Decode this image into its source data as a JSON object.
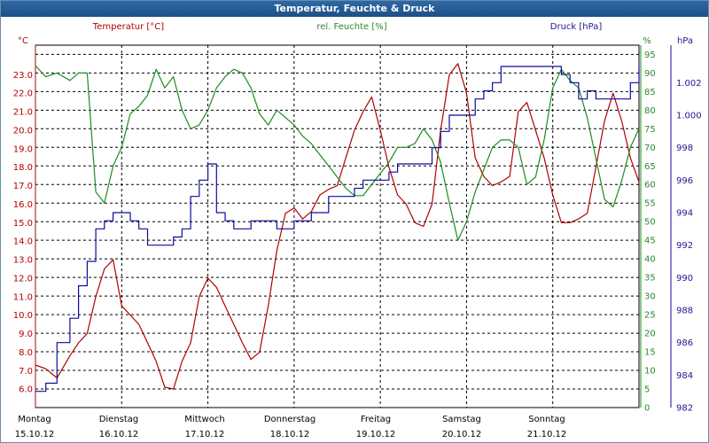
{
  "window": {
    "title": "Temperatur, Feuchte & Druck"
  },
  "colors": {
    "temp": "#b00000",
    "hum": "#1e8c1e",
    "press": "#0c0ca0"
  },
  "chart_data": {
    "type": "line",
    "title": "Temperatur, Feuchte & Druck",
    "axes": {
      "temp": {
        "label": "Temperatur [°C]",
        "unit": "°C",
        "min": 5.0,
        "max": 24.5,
        "ticks": [
          "6.0",
          "7.0",
          "8.0",
          "9.0",
          "10.0",
          "11.0",
          "12.0",
          "13.0",
          "14.0",
          "15.0",
          "16.0",
          "17.0",
          "18.0",
          "19.0",
          "20.0",
          "21.0",
          "22.0",
          "23.0"
        ]
      },
      "hum": {
        "label": "rel. Feuchte [%]",
        "unit": "%",
        "min": 0,
        "max": 97,
        "ticks": [
          "0",
          "5",
          "10",
          "15",
          "20",
          "25",
          "30",
          "35",
          "40",
          "45",
          "50",
          "55",
          "60",
          "65",
          "70",
          "75",
          "80",
          "85",
          "90",
          "95"
        ]
      },
      "press": {
        "label": "Druck [hPa]",
        "unit": "hPa",
        "min": 982.0,
        "max": 1004.2,
        "ticks": [
          "982",
          "984",
          "986",
          "988",
          "990",
          "992",
          "994",
          "996",
          "998",
          "1.000",
          "1.002"
        ]
      }
    },
    "days": [
      {
        "name": "Montag",
        "date": "15.10.12"
      },
      {
        "name": "Dienstag",
        "date": "16.10.12"
      },
      {
        "name": "Mittwoch",
        "date": "17.10.12"
      },
      {
        "name": "Donnerstag",
        "date": "18.10.12"
      },
      {
        "name": "Freitag",
        "date": "19.10.12"
      },
      {
        "name": "Samstag",
        "date": "20.10.12"
      },
      {
        "name": "Sonntag",
        "date": "21.10.12"
      }
    ],
    "x_range": [
      0,
      7.0
    ],
    "series": [
      {
        "name": "Temperatur",
        "axis": "temp",
        "x": [
          0,
          0.12,
          0.25,
          0.4,
          0.5,
          0.6,
          0.7,
          0.8,
          0.9,
          1.0,
          1.1,
          1.2,
          1.3,
          1.4,
          1.5,
          1.6,
          1.7,
          1.8,
          1.9,
          2.0,
          2.1,
          2.2,
          2.3,
          2.4,
          2.5,
          2.6,
          2.7,
          2.8,
          2.9,
          3.0,
          3.1,
          3.2,
          3.3,
          3.4,
          3.5,
          3.6,
          3.7,
          3.8,
          3.9,
          4.0,
          4.1,
          4.2,
          4.3,
          4.4,
          4.5,
          4.6,
          4.7,
          4.8,
          4.9,
          5.0,
          5.1,
          5.2,
          5.3,
          5.4,
          5.5,
          5.6,
          5.7,
          5.8,
          5.9,
          6.0,
          6.1,
          6.2,
          6.3,
          6.4,
          6.5,
          6.6,
          6.7,
          6.8,
          6.9,
          7.0
        ],
        "values": [
          7.3,
          7.1,
          6.6,
          7.8,
          8.5,
          9.0,
          11.0,
          12.5,
          13.0,
          10.5,
          10.0,
          9.5,
          8.5,
          7.5,
          6.1,
          6.0,
          7.5,
          8.5,
          11.0,
          12.0,
          11.5,
          10.5,
          9.5,
          8.5,
          7.6,
          8.0,
          10.5,
          13.5,
          15.5,
          15.8,
          15.2,
          15.6,
          16.5,
          16.8,
          17.0,
          18.5,
          20.0,
          21.0,
          21.8,
          20.0,
          18.0,
          16.5,
          16.0,
          15.0,
          14.8,
          16.0,
          20.0,
          23.0,
          23.6,
          22.0,
          18.5,
          17.5,
          17.0,
          17.2,
          17.5,
          21.0,
          21.5,
          20.0,
          18.5,
          16.5,
          15.0,
          15.0,
          15.2,
          15.5,
          18.0,
          20.5,
          22.0,
          20.5,
          18.5,
          17.2
        ]
      },
      {
        "name": "rel. Feuchte",
        "axis": "hum",
        "x": [
          0,
          0.12,
          0.25,
          0.4,
          0.5,
          0.6,
          0.7,
          0.8,
          0.9,
          1.0,
          1.1,
          1.2,
          1.3,
          1.4,
          1.5,
          1.6,
          1.7,
          1.8,
          1.9,
          2.0,
          2.1,
          2.2,
          2.3,
          2.4,
          2.5,
          2.6,
          2.7,
          2.8,
          2.9,
          3.0,
          3.1,
          3.2,
          3.3,
          3.4,
          3.5,
          3.6,
          3.7,
          3.8,
          3.9,
          4.0,
          4.1,
          4.2,
          4.3,
          4.4,
          4.5,
          4.6,
          4.7,
          4.8,
          4.9,
          5.0,
          5.1,
          5.2,
          5.3,
          5.4,
          5.5,
          5.6,
          5.7,
          5.8,
          5.9,
          6.0,
          6.1,
          6.2,
          6.3,
          6.4,
          6.5,
          6.6,
          6.7,
          6.8,
          6.9,
          7.0
        ],
        "values": [
          92,
          89,
          90,
          88,
          90,
          90,
          58,
          55,
          65,
          70,
          79,
          81,
          84,
          91,
          86,
          89,
          80,
          75,
          76,
          80,
          86,
          89,
          91,
          90,
          86,
          79,
          76,
          80,
          78,
          76,
          73,
          71,
          68,
          65,
          62,
          59,
          57,
          57,
          60,
          63,
          66,
          70,
          70,
          71,
          75,
          72,
          66,
          55,
          45,
          50,
          58,
          64,
          70,
          72,
          72,
          70,
          60,
          62,
          72,
          86,
          91,
          88,
          86,
          78,
          67,
          56,
          54,
          61,
          70,
          75
        ]
      },
      {
        "name": "Druck",
        "axis": "press",
        "x": [
          0,
          0.12,
          0.25,
          0.4,
          0.5,
          0.6,
          0.7,
          0.8,
          0.9,
          1.0,
          1.1,
          1.2,
          1.3,
          1.4,
          1.5,
          1.6,
          1.7,
          1.8,
          1.9,
          2.0,
          2.1,
          2.2,
          2.3,
          2.4,
          2.5,
          2.6,
          2.7,
          2.8,
          2.9,
          3.0,
          3.1,
          3.2,
          3.3,
          3.4,
          3.5,
          3.6,
          3.7,
          3.8,
          3.9,
          4.0,
          4.1,
          4.2,
          4.3,
          4.4,
          4.5,
          4.6,
          4.7,
          4.8,
          4.9,
          5.0,
          5.1,
          5.2,
          5.3,
          5.4,
          5.5,
          5.6,
          5.7,
          5.8,
          5.9,
          6.0,
          6.1,
          6.2,
          6.3,
          6.4,
          6.5,
          6.6,
          6.7,
          6.8,
          6.9,
          7.0
        ],
        "values": [
          983.0,
          983.5,
          986.0,
          987.5,
          989.5,
          991.0,
          993.0,
          993.5,
          994.0,
          994.0,
          993.5,
          993.0,
          992.0,
          992.0,
          992.0,
          992.5,
          993.0,
          995.0,
          996.0,
          997.0,
          994.0,
          993.5,
          993.0,
          993.0,
          993.5,
          993.5,
          993.5,
          993.0,
          993.0,
          993.5,
          993.5,
          994.0,
          994.0,
          995.0,
          995.0,
          995.0,
          995.5,
          996.0,
          996.0,
          996.0,
          996.5,
          997.0,
          997.0,
          997.0,
          997.0,
          998.0,
          999.0,
          1000.0,
          1000.0,
          1000.0,
          1001.0,
          1001.5,
          1002.0,
          1003.0,
          1003.0,
          1003.0,
          1003.0,
          1003.0,
          1003.0,
          1003.0,
          1002.5,
          1002.0,
          1001.0,
          1001.5,
          1001.0,
          1001.0,
          1001.0,
          1001.0,
          1002.0,
          1003.0
        ]
      }
    ]
  }
}
